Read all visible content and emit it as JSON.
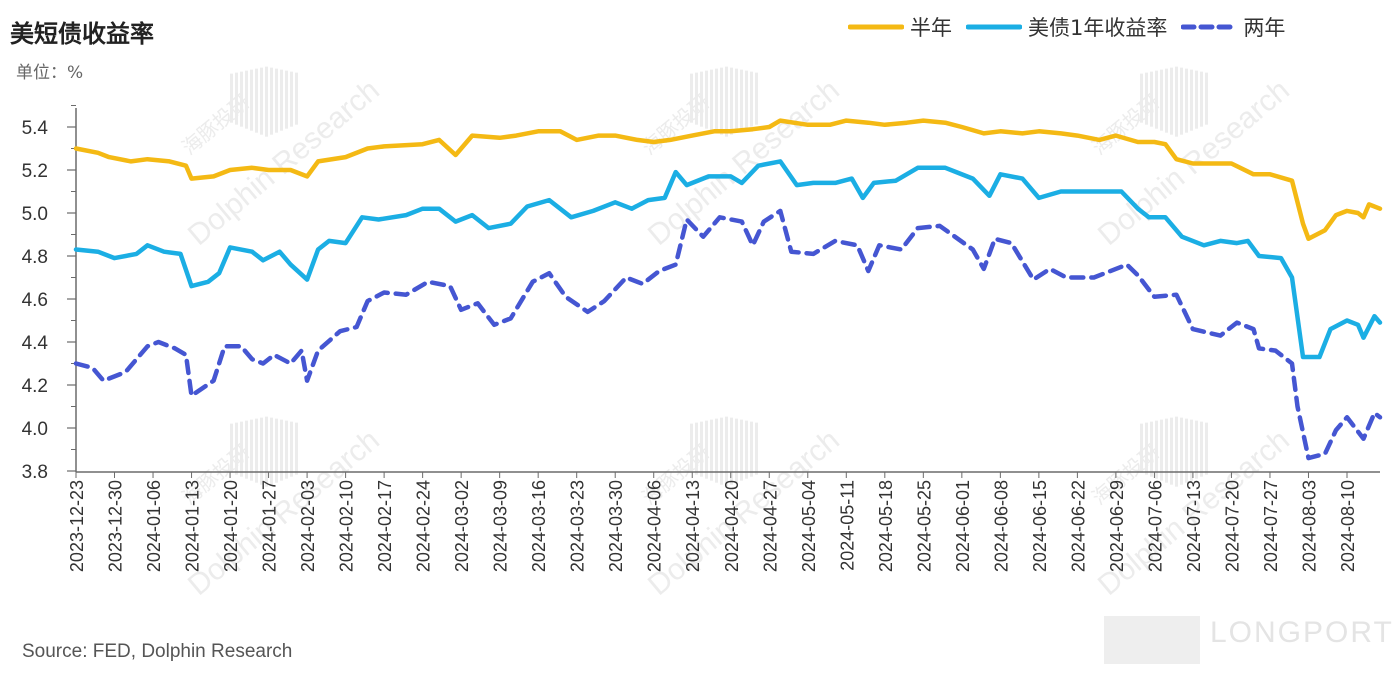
{
  "title": "美短债收益率",
  "unit": "单位：%",
  "source": "Source: FED, Dolphin Research",
  "watermark": {
    "brand": "LONGPORT",
    "text_en": "Dolphin Research",
    "text_cn": "海豚投研"
  },
  "colors": {
    "half_year": "#F4B914",
    "one_year": "#1BAEE4",
    "two_year": "#4556D2",
    "axis": "#555555"
  },
  "chart_data": {
    "type": "line",
    "title": "美短债收益率",
    "ylim": [
      3.8,
      5.5
    ],
    "yticks": [
      "5.4",
      "5.2",
      "5.0",
      "4.8",
      "4.6",
      "4.4",
      "4.2",
      "4.0",
      "3.8"
    ],
    "grid": false,
    "legend_position": "top-right",
    "x_tick_labels": [
      "2023-12-23",
      "2023-12-30",
      "2024-01-06",
      "2024-01-13",
      "2024-01-20",
      "2024-01-27",
      "2024-02-03",
      "2024-02-10",
      "2024-02-17",
      "2024-02-24",
      "2024-03-02",
      "2024-03-09",
      "2024-03-16",
      "2024-03-23",
      "2024-03-30",
      "2024-04-06",
      "2024-04-13",
      "2024-04-20",
      "2024-04-27",
      "2024-05-04",
      "2024-05-11",
      "2024-05-18",
      "2024-05-25",
      "2024-06-01",
      "2024-06-08",
      "2024-06-15",
      "2024-06-22",
      "2024-06-29",
      "2024-07-06",
      "2024-07-13",
      "2024-07-20",
      "2024-07-27",
      "2024-08-03",
      "2024-08-10"
    ],
    "x_start": "2023-12-23",
    "x_end": "2024-08-16",
    "series": [
      {
        "name": "半年",
        "style": "solid",
        "color": "#F4B914",
        "points": [
          [
            "2023-12-23",
            5.3
          ],
          [
            "2023-12-27",
            5.28
          ],
          [
            "2023-12-29",
            5.26
          ],
          [
            "2024-01-02",
            5.24
          ],
          [
            "2024-01-05",
            5.25
          ],
          [
            "2024-01-09",
            5.24
          ],
          [
            "2024-01-12",
            5.22
          ],
          [
            "2024-01-13",
            5.16
          ],
          [
            "2024-01-17",
            5.17
          ],
          [
            "2024-01-20",
            5.2
          ],
          [
            "2024-01-24",
            5.21
          ],
          [
            "2024-01-27",
            5.2
          ],
          [
            "2024-01-31",
            5.2
          ],
          [
            "2024-02-03",
            5.17
          ],
          [
            "2024-02-05",
            5.24
          ],
          [
            "2024-02-10",
            5.26
          ],
          [
            "2024-02-14",
            5.3
          ],
          [
            "2024-02-17",
            5.31
          ],
          [
            "2024-02-24",
            5.32
          ],
          [
            "2024-02-27",
            5.34
          ],
          [
            "2024-03-01",
            5.27
          ],
          [
            "2024-03-04",
            5.36
          ],
          [
            "2024-03-09",
            5.35
          ],
          [
            "2024-03-12",
            5.36
          ],
          [
            "2024-03-16",
            5.38
          ],
          [
            "2024-03-20",
            5.38
          ],
          [
            "2024-03-23",
            5.34
          ],
          [
            "2024-03-27",
            5.36
          ],
          [
            "2024-03-30",
            5.36
          ],
          [
            "2024-04-03",
            5.34
          ],
          [
            "2024-04-06",
            5.33
          ],
          [
            "2024-04-09",
            5.34
          ],
          [
            "2024-04-13",
            5.36
          ],
          [
            "2024-04-17",
            5.38
          ],
          [
            "2024-04-20",
            5.38
          ],
          [
            "2024-04-24",
            5.39
          ],
          [
            "2024-04-27",
            5.4
          ],
          [
            "2024-04-29",
            5.43
          ],
          [
            "2024-05-04",
            5.41
          ],
          [
            "2024-05-08",
            5.41
          ],
          [
            "2024-05-11",
            5.43
          ],
          [
            "2024-05-15",
            5.42
          ],
          [
            "2024-05-18",
            5.41
          ],
          [
            "2024-05-22",
            5.42
          ],
          [
            "2024-05-25",
            5.43
          ],
          [
            "2024-05-29",
            5.42
          ],
          [
            "2024-06-01",
            5.4
          ],
          [
            "2024-06-05",
            5.37
          ],
          [
            "2024-06-08",
            5.38
          ],
          [
            "2024-06-12",
            5.37
          ],
          [
            "2024-06-15",
            5.38
          ],
          [
            "2024-06-19",
            5.37
          ],
          [
            "2024-06-22",
            5.36
          ],
          [
            "2024-06-26",
            5.34
          ],
          [
            "2024-06-29",
            5.36
          ],
          [
            "2024-07-03",
            5.33
          ],
          [
            "2024-07-06",
            5.33
          ],
          [
            "2024-07-08",
            5.32
          ],
          [
            "2024-07-10",
            5.25
          ],
          [
            "2024-07-13",
            5.23
          ],
          [
            "2024-07-17",
            5.23
          ],
          [
            "2024-07-20",
            5.23
          ],
          [
            "2024-07-24",
            5.18
          ],
          [
            "2024-07-27",
            5.18
          ],
          [
            "2024-07-31",
            5.15
          ],
          [
            "2024-08-02",
            4.95
          ],
          [
            "2024-08-03",
            4.88
          ],
          [
            "2024-08-06",
            4.92
          ],
          [
            "2024-08-08",
            4.99
          ],
          [
            "2024-08-10",
            5.01
          ],
          [
            "2024-08-12",
            5.0
          ],
          [
            "2024-08-13",
            4.98
          ],
          [
            "2024-08-14",
            5.04
          ],
          [
            "2024-08-16",
            5.02
          ]
        ]
      },
      {
        "name": "美债1年收益率",
        "style": "solid",
        "color": "#1BAEE4",
        "points": [
          [
            "2023-12-23",
            4.83
          ],
          [
            "2023-12-27",
            4.82
          ],
          [
            "2023-12-30",
            4.79
          ],
          [
            "2024-01-03",
            4.81
          ],
          [
            "2024-01-05",
            4.85
          ],
          [
            "2024-01-08",
            4.82
          ],
          [
            "2024-01-11",
            4.81
          ],
          [
            "2024-01-13",
            4.66
          ],
          [
            "2024-01-16",
            4.68
          ],
          [
            "2024-01-18",
            4.72
          ],
          [
            "2024-01-20",
            4.84
          ],
          [
            "2024-01-24",
            4.82
          ],
          [
            "2024-01-26",
            4.78
          ],
          [
            "2024-01-29",
            4.82
          ],
          [
            "2024-01-31",
            4.76
          ],
          [
            "2024-02-03",
            4.69
          ],
          [
            "2024-02-05",
            4.83
          ],
          [
            "2024-02-07",
            4.87
          ],
          [
            "2024-02-10",
            4.86
          ],
          [
            "2024-02-13",
            4.98
          ],
          [
            "2024-02-16",
            4.97
          ],
          [
            "2024-02-21",
            4.99
          ],
          [
            "2024-02-24",
            5.02
          ],
          [
            "2024-02-27",
            5.02
          ],
          [
            "2024-03-01",
            4.96
          ],
          [
            "2024-03-04",
            4.99
          ],
          [
            "2024-03-07",
            4.93
          ],
          [
            "2024-03-11",
            4.95
          ],
          [
            "2024-03-14",
            5.03
          ],
          [
            "2024-03-18",
            5.06
          ],
          [
            "2024-03-22",
            4.98
          ],
          [
            "2024-03-26",
            5.01
          ],
          [
            "2024-03-30",
            5.05
          ],
          [
            "2024-04-02",
            5.02
          ],
          [
            "2024-04-05",
            5.06
          ],
          [
            "2024-04-08",
            5.07
          ],
          [
            "2024-04-10",
            5.19
          ],
          [
            "2024-04-12",
            5.13
          ],
          [
            "2024-04-16",
            5.17
          ],
          [
            "2024-04-20",
            5.17
          ],
          [
            "2024-04-22",
            5.14
          ],
          [
            "2024-04-25",
            5.22
          ],
          [
            "2024-04-29",
            5.24
          ],
          [
            "2024-05-02",
            5.13
          ],
          [
            "2024-05-05",
            5.14
          ],
          [
            "2024-05-09",
            5.14
          ],
          [
            "2024-05-12",
            5.16
          ],
          [
            "2024-05-14",
            5.07
          ],
          [
            "2024-05-16",
            5.14
          ],
          [
            "2024-05-20",
            5.15
          ],
          [
            "2024-05-24",
            5.21
          ],
          [
            "2024-05-29",
            5.21
          ],
          [
            "2024-05-31",
            5.19
          ],
          [
            "2024-06-03",
            5.16
          ],
          [
            "2024-06-06",
            5.08
          ],
          [
            "2024-06-08",
            5.18
          ],
          [
            "2024-06-12",
            5.16
          ],
          [
            "2024-06-15",
            5.07
          ],
          [
            "2024-06-19",
            5.1
          ],
          [
            "2024-06-24",
            5.1
          ],
          [
            "2024-06-27",
            5.1
          ],
          [
            "2024-06-30",
            5.1
          ],
          [
            "2024-07-03",
            5.02
          ],
          [
            "2024-07-05",
            4.98
          ],
          [
            "2024-07-08",
            4.98
          ],
          [
            "2024-07-11",
            4.89
          ],
          [
            "2024-07-15",
            4.85
          ],
          [
            "2024-07-18",
            4.87
          ],
          [
            "2024-07-21",
            4.86
          ],
          [
            "2024-07-23",
            4.87
          ],
          [
            "2024-07-25",
            4.8
          ],
          [
            "2024-07-29",
            4.79
          ],
          [
            "2024-07-31",
            4.7
          ],
          [
            "2024-08-02",
            4.33
          ],
          [
            "2024-08-05",
            4.33
          ],
          [
            "2024-08-07",
            4.46
          ],
          [
            "2024-08-10",
            4.5
          ],
          [
            "2024-08-12",
            4.48
          ],
          [
            "2024-08-13",
            4.42
          ],
          [
            "2024-08-15",
            4.52
          ],
          [
            "2024-08-16",
            4.49
          ]
        ]
      },
      {
        "name": "两年",
        "style": "dashed",
        "color": "#4556D2",
        "points": [
          [
            "2023-12-23",
            4.3
          ],
          [
            "2023-12-26",
            4.28
          ],
          [
            "2023-12-28",
            4.22
          ],
          [
            "2024-01-01",
            4.26
          ],
          [
            "2024-01-05",
            4.38
          ],
          [
            "2024-01-07",
            4.4
          ],
          [
            "2024-01-10",
            4.37
          ],
          [
            "2024-01-12",
            4.34
          ],
          [
            "2024-01-13",
            4.15
          ],
          [
            "2024-01-17",
            4.22
          ],
          [
            "2024-01-19",
            4.38
          ],
          [
            "2024-01-22",
            4.38
          ],
          [
            "2024-01-24",
            4.32
          ],
          [
            "2024-01-26",
            4.3
          ],
          [
            "2024-01-28",
            4.34
          ],
          [
            "2024-01-31",
            4.3
          ],
          [
            "2024-02-02",
            4.36
          ],
          [
            "2024-02-03",
            4.22
          ],
          [
            "2024-02-05",
            4.36
          ],
          [
            "2024-02-09",
            4.45
          ],
          [
            "2024-02-12",
            4.47
          ],
          [
            "2024-02-14",
            4.59
          ],
          [
            "2024-02-17",
            4.63
          ],
          [
            "2024-02-21",
            4.62
          ],
          [
            "2024-02-25",
            4.68
          ],
          [
            "2024-02-29",
            4.66
          ],
          [
            "2024-03-02",
            4.55
          ],
          [
            "2024-03-05",
            4.58
          ],
          [
            "2024-03-08",
            4.48
          ],
          [
            "2024-03-11",
            4.51
          ],
          [
            "2024-03-15",
            4.68
          ],
          [
            "2024-03-18",
            4.72
          ],
          [
            "2024-03-21",
            4.61
          ],
          [
            "2024-03-25",
            4.54
          ],
          [
            "2024-03-28",
            4.59
          ],
          [
            "2024-04-01",
            4.7
          ],
          [
            "2024-04-04",
            4.67
          ],
          [
            "2024-04-07",
            4.73
          ],
          [
            "2024-04-10",
            4.76
          ],
          [
            "2024-04-12",
            4.97
          ],
          [
            "2024-04-15",
            4.89
          ],
          [
            "2024-04-18",
            4.98
          ],
          [
            "2024-04-22",
            4.96
          ],
          [
            "2024-04-24",
            4.85
          ],
          [
            "2024-04-26",
            4.96
          ],
          [
            "2024-04-29",
            5.01
          ],
          [
            "2024-05-01",
            4.82
          ],
          [
            "2024-05-05",
            4.81
          ],
          [
            "2024-05-09",
            4.87
          ],
          [
            "2024-05-13",
            4.85
          ],
          [
            "2024-05-15",
            4.73
          ],
          [
            "2024-05-17",
            4.85
          ],
          [
            "2024-05-21",
            4.83
          ],
          [
            "2024-05-24",
            4.93
          ],
          [
            "2024-05-28",
            4.94
          ],
          [
            "2024-06-03",
            4.83
          ],
          [
            "2024-06-05",
            4.74
          ],
          [
            "2024-06-07",
            4.88
          ],
          [
            "2024-06-10",
            4.86
          ],
          [
            "2024-06-14",
            4.69
          ],
          [
            "2024-06-17",
            4.74
          ],
          [
            "2024-06-20",
            4.7
          ],
          [
            "2024-06-25",
            4.7
          ],
          [
            "2024-06-27",
            4.72
          ],
          [
            "2024-07-01",
            4.76
          ],
          [
            "2024-07-03",
            4.71
          ],
          [
            "2024-07-06",
            4.61
          ],
          [
            "2024-07-10",
            4.62
          ],
          [
            "2024-07-13",
            4.46
          ],
          [
            "2024-07-18",
            4.43
          ],
          [
            "2024-07-21",
            4.49
          ],
          [
            "2024-07-24",
            4.46
          ],
          [
            "2024-07-25",
            4.37
          ],
          [
            "2024-07-28",
            4.36
          ],
          [
            "2024-07-31",
            4.3
          ],
          [
            "2024-08-01",
            4.1
          ],
          [
            "2024-08-03",
            3.86
          ],
          [
            "2024-08-06",
            3.88
          ],
          [
            "2024-08-08",
            3.99
          ],
          [
            "2024-08-10",
            4.05
          ],
          [
            "2024-08-13",
            3.95
          ],
          [
            "2024-08-15",
            4.07
          ],
          [
            "2024-08-16",
            4.05
          ]
        ]
      }
    ]
  }
}
